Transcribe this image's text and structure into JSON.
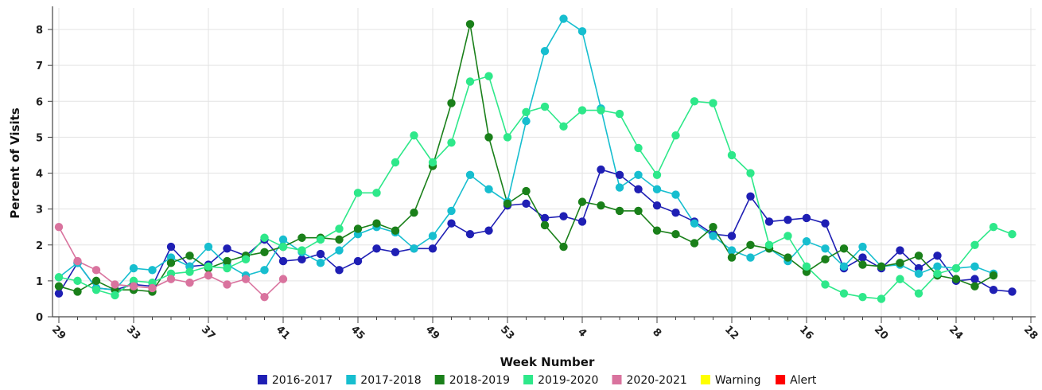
{
  "chart_data": {
    "type": "line",
    "xlabel": "Week Number",
    "ylabel": "Percent of Visits",
    "ylim": [
      0,
      8.6
    ],
    "yticks": [
      0,
      1,
      2,
      3,
      4,
      5,
      6,
      7,
      8
    ],
    "x_tick_labels": [
      "29",
      "33",
      "37",
      "41",
      "45",
      "49",
      "53",
      "4",
      "8",
      "12",
      "16",
      "20",
      "24",
      "28"
    ],
    "x_tick_positions": [
      0,
      4,
      8,
      12,
      16,
      20,
      24,
      28,
      32,
      36,
      40,
      44,
      48,
      52
    ],
    "x_count": 53,
    "grid": true,
    "legend_position": "bottom",
    "series": [
      {
        "name": "2016-2017",
        "color": "#1f1fb4",
        "values": [
          0.65,
          1.5,
          0.8,
          0.75,
          0.9,
          0.85,
          1.95,
          1.4,
          1.45,
          1.9,
          1.7,
          2.15,
          1.55,
          1.6,
          1.75,
          1.3,
          1.55,
          1.9,
          1.8,
          1.9,
          1.9,
          2.6,
          2.3,
          2.4,
          3.1,
          3.15,
          2.75,
          2.8,
          2.65,
          4.1,
          3.95,
          3.55,
          3.1,
          2.9,
          2.65,
          2.3,
          2.25,
          3.35,
          2.65,
          2.7,
          2.75,
          2.6,
          1.35,
          1.65,
          1.35,
          1.85,
          1.35,
          1.7,
          1.0,
          1.05,
          0.75,
          0.7
        ]
      },
      {
        "name": "2017-2018",
        "color": "#17becf",
        "values": [
          1.1,
          1.5,
          0.8,
          0.75,
          1.35,
          1.3,
          1.65,
          1.4,
          1.95,
          1.45,
          1.15,
          1.3,
          2.15,
          1.8,
          1.5,
          1.85,
          2.3,
          2.5,
          2.35,
          1.9,
          2.25,
          2.95,
          3.95,
          3.55,
          3.2,
          5.45,
          7.4,
          8.3,
          7.95,
          5.8,
          3.6,
          3.95,
          3.55,
          3.4,
          2.6,
          2.25,
          1.85,
          1.65,
          1.9,
          1.55,
          2.1,
          1.9,
          1.4,
          1.95,
          1.4,
          1.45,
          1.2,
          1.4,
          1.35,
          1.4,
          1.2
        ]
      },
      {
        "name": "2018-2019",
        "color": "#1a801a",
        "values": [
          0.85,
          0.7,
          1.0,
          0.75,
          0.75,
          0.7,
          1.5,
          1.7,
          1.35,
          1.55,
          1.7,
          1.8,
          1.95,
          2.2,
          2.2,
          2.15,
          2.45,
          2.6,
          2.4,
          2.9,
          4.2,
          5.95,
          8.15,
          5.0,
          3.15,
          3.5,
          2.55,
          1.95,
          3.2,
          3.1,
          2.95,
          2.95,
          2.4,
          2.3,
          2.05,
          2.5,
          1.65,
          2.0,
          1.9,
          1.65,
          1.25,
          1.6,
          1.9,
          1.45,
          1.4,
          1.5,
          1.7,
          1.15,
          1.05,
          0.85,
          1.15
        ]
      },
      {
        "name": "2019-2020",
        "color": "#2ee88a",
        "values": [
          1.1,
          1.0,
          0.75,
          0.6,
          1.0,
          0.95,
          1.2,
          1.25,
          1.4,
          1.35,
          1.6,
          2.2,
          1.95,
          1.85,
          2.15,
          2.45,
          3.45,
          3.45,
          4.3,
          5.05,
          4.3,
          4.85,
          6.55,
          6.7,
          5.0,
          5.7,
          5.85,
          5.3,
          5.75,
          5.75,
          5.65,
          4.7,
          3.95,
          5.05,
          6.0,
          5.95,
          4.5,
          4.0,
          2.0,
          2.25,
          1.4,
          0.9,
          0.65,
          0.55,
          0.5,
          1.05,
          0.65,
          1.2,
          1.35,
          2.0,
          2.5,
          2.3
        ]
      },
      {
        "name": "2020-2021",
        "color": "#d9739e",
        "values": [
          2.5,
          1.55,
          1.3,
          0.9,
          0.85,
          0.8,
          1.05,
          0.95,
          1.15,
          0.9,
          1.05,
          0.55,
          1.05
        ]
      }
    ],
    "markers": [
      {
        "name": "Warning",
        "color": "#ffff00"
      },
      {
        "name": "Alert",
        "color": "#ff0000"
      }
    ]
  }
}
